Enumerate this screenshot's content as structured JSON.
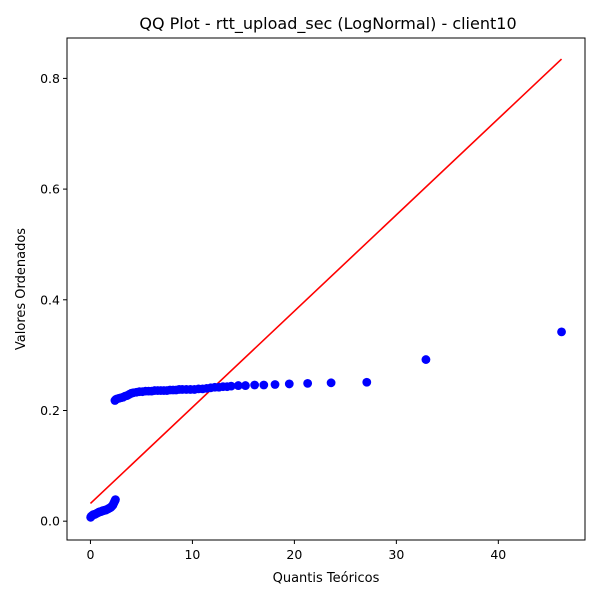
{
  "chart_data": {
    "type": "scatter",
    "title": "QQ Plot - rtt_upload_sec (LogNormal) - client10",
    "xlabel": "Quantis Teóricos",
    "ylabel": "Valores Ordenados",
    "xlim": [
      -2.3,
      48.5
    ],
    "ylim": [
      -0.034,
      0.873
    ],
    "xticks": [
      0,
      10,
      20,
      30,
      40
    ],
    "yticks": [
      0.0,
      0.2,
      0.4,
      0.6,
      0.8
    ],
    "xtick_labels": [
      "0",
      "10",
      "20",
      "30",
      "40"
    ],
    "ytick_labels": [
      "0.0",
      "0.2",
      "0.4",
      "0.6",
      "0.8"
    ],
    "grid": false,
    "legend": "none",
    "colors": {
      "points": "#0000ff",
      "line": "#ff0000",
      "axes": "#000000"
    },
    "series": [
      {
        "type": "scatter",
        "x": [
          0.02,
          0.05,
          0.1,
          0.15,
          0.22,
          0.3,
          0.4,
          0.5,
          0.6,
          0.7,
          0.8,
          0.9,
          1.0,
          1.1,
          1.2,
          1.3,
          1.4,
          1.5,
          1.6,
          1.7,
          1.8,
          1.9,
          2.0,
          2.1,
          2.2,
          2.25,
          2.3,
          2.35,
          2.4,
          2.45,
          2.4,
          2.5,
          2.6,
          2.8,
          3.0,
          3.2,
          3.4,
          3.6,
          3.8,
          4.0,
          4.2,
          4.5,
          4.8,
          5.1,
          5.4,
          5.7,
          6.0,
          6.3,
          6.6,
          6.9,
          7.2,
          7.5,
          7.8,
          8.1,
          8.4,
          8.7,
          9.0,
          9.4,
          9.8,
          10.2,
          10.6,
          11.0,
          11.4,
          11.8,
          12.2,
          12.6,
          13.0,
          13.4,
          13.8,
          14.5,
          15.2,
          16.1,
          17.0,
          18.1,
          19.5,
          21.3,
          23.6,
          27.1,
          32.9,
          46.2
        ],
        "y": [
          0.007,
          0.008,
          0.009,
          0.01,
          0.011,
          0.012,
          0.012,
          0.013,
          0.014,
          0.015,
          0.016,
          0.017,
          0.017,
          0.018,
          0.019,
          0.019,
          0.02,
          0.02,
          0.021,
          0.022,
          0.023,
          0.024,
          0.025,
          0.027,
          0.029,
          0.031,
          0.033,
          0.035,
          0.037,
          0.039,
          0.218,
          0.22,
          0.221,
          0.222,
          0.223,
          0.224,
          0.226,
          0.227,
          0.229,
          0.231,
          0.232,
          0.233,
          0.234,
          0.234,
          0.235,
          0.235,
          0.235,
          0.236,
          0.236,
          0.236,
          0.236,
          0.236,
          0.237,
          0.237,
          0.237,
          0.238,
          0.238,
          0.238,
          0.238,
          0.238,
          0.239,
          0.239,
          0.24,
          0.241,
          0.242,
          0.242,
          0.243,
          0.243,
          0.244,
          0.245,
          0.245,
          0.246,
          0.246,
          0.247,
          0.248,
          0.249,
          0.25,
          0.251,
          0.292,
          0.342
        ]
      },
      {
        "type": "line",
        "x": [
          0.0,
          46.2
        ],
        "y": [
          0.032,
          0.835
        ]
      }
    ]
  }
}
